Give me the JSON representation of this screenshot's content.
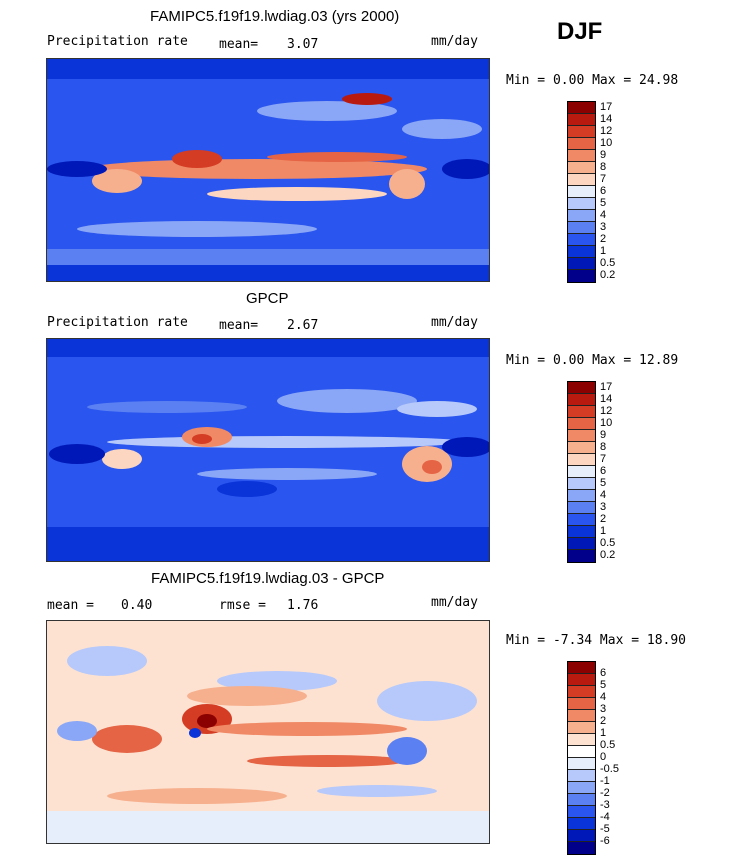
{
  "season": "DJF",
  "colors": {
    "levels_abs": [
      "#00008b",
      "#0018b8",
      "#0a34d8",
      "#2a55ee",
      "#5b80f2",
      "#8aa6f6",
      "#b6c9fa",
      "#e6eefc",
      "#fcd6c0",
      "#f7b08e",
      "#f08a66",
      "#e56445",
      "#d43c24",
      "#b81a10",
      "#8b0000"
    ],
    "levels_diff": [
      "#00008b",
      "#0018b8",
      "#0a34d8",
      "#2a55ee",
      "#5b80f2",
      "#8aa6f6",
      "#b6c9fa",
      "#e6eefc",
      "#fde2d2",
      "#f7b08e",
      "#f08a66",
      "#e56445",
      "#d43c24",
      "#b81a10",
      "#8b0000"
    ]
  },
  "panels": [
    {
      "title": "FAMIPC5.f19f19.lwdiag.03 (yrs 2000)",
      "left_label": "Precipitation rate",
      "stat1_label": "mean=",
      "stat1_value": "3.07",
      "stat2_label": "",
      "stat2_value": "",
      "units": "mm/day",
      "range_text": "Min =    0.00 Max =  24.98",
      "colorbar_labels": [
        "17",
        "14",
        "12",
        "10",
        "9",
        "8",
        "7",
        "6",
        "5",
        "4",
        "3",
        "2",
        "1",
        "0.5",
        "0.2"
      ]
    },
    {
      "title": "GPCP",
      "left_label": "Precipitation rate",
      "stat1_label": "mean=",
      "stat1_value": "2.67",
      "stat2_label": "",
      "stat2_value": "",
      "units": "mm/day",
      "range_text": "Min =    0.00 Max =  12.89",
      "colorbar_labels": [
        "17",
        "14",
        "12",
        "10",
        "9",
        "8",
        "7",
        "6",
        "5",
        "4",
        "3",
        "2",
        "1",
        "0.5",
        "0.2"
      ]
    },
    {
      "title": "FAMIPC5.f19f19.lwdiag.03 - GPCP",
      "left_label": "mean =",
      "stat1_label": "",
      "stat1_value": "0.40",
      "stat2_label": "rmse =",
      "stat2_value": "1.76",
      "units": "mm/day",
      "range_text": "Min =  -7.34 Max =  18.90",
      "colorbar_labels": [
        "6",
        "5",
        "4",
        "3",
        "2",
        "1",
        "0.5",
        "0",
        "-0.5",
        "-1",
        "-2",
        "-3",
        "-4",
        "-5",
        "-6"
      ]
    }
  ],
  "chart_data": [
    {
      "type": "heatmap",
      "title": "FAMIPC5.f19f19.lwdiag.03 (yrs 2000)",
      "variable": "Precipitation rate",
      "units": "mm/day",
      "season": "DJF",
      "mean": 3.07,
      "min": 0.0,
      "max": 24.98,
      "contour_levels": [
        0.2,
        0.5,
        1,
        2,
        3,
        4,
        5,
        6,
        7,
        8,
        9,
        10,
        12,
        14,
        17
      ]
    },
    {
      "type": "heatmap",
      "title": "GPCP",
      "variable": "Precipitation rate",
      "units": "mm/day",
      "season": "DJF",
      "mean": 2.67,
      "min": 0.0,
      "max": 12.89,
      "contour_levels": [
        0.2,
        0.5,
        1,
        2,
        3,
        4,
        5,
        6,
        7,
        8,
        9,
        10,
        12,
        14,
        17
      ]
    },
    {
      "type": "heatmap",
      "title": "FAMIPC5.f19f19.lwdiag.03 - GPCP",
      "units": "mm/day",
      "season": "DJF",
      "mean": 0.4,
      "rmse": 1.76,
      "min": -7.34,
      "max": 18.9,
      "contour_levels": [
        -6,
        -5,
        -4,
        -3,
        -2,
        -1,
        -0.5,
        0,
        0.5,
        1,
        2,
        3,
        4,
        5,
        6
      ]
    }
  ]
}
